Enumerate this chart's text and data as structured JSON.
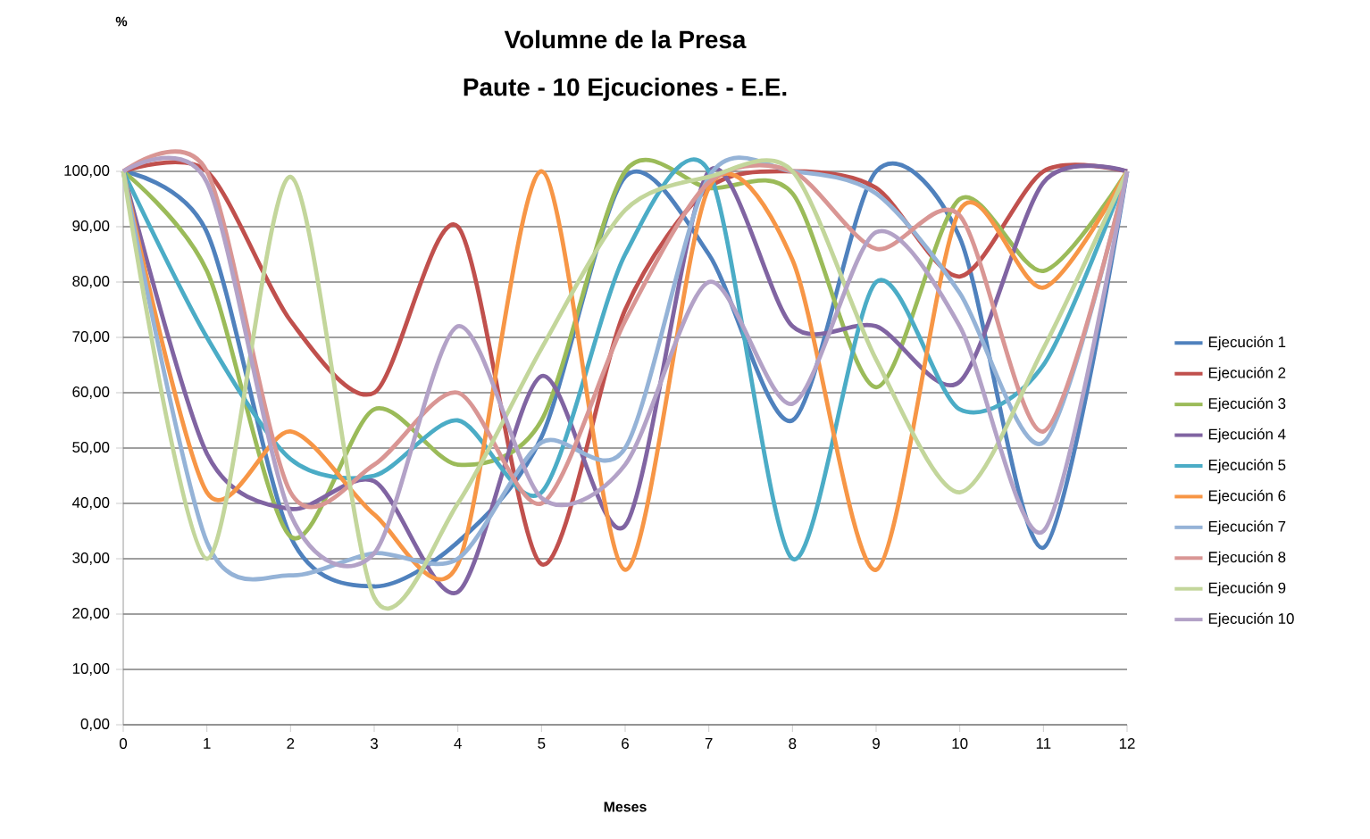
{
  "chart_data": {
    "type": "line",
    "title": "Volumne de la Presa",
    "subtitle": "Paute - 10 Ejcuciones - E.E.",
    "xlabel": "Meses",
    "annotations": [
      "%"
    ],
    "x": [
      0,
      1,
      2,
      3,
      4,
      5,
      6,
      7,
      8,
      9,
      10,
      11,
      12
    ],
    "xlim": [
      0,
      12
    ],
    "xticks": [
      0,
      1,
      2,
      3,
      4,
      5,
      6,
      7,
      8,
      9,
      10,
      11,
      12
    ],
    "ylim": [
      0,
      100
    ],
    "yticks": [
      {
        "value": 0,
        "label": "0,00"
      },
      {
        "value": 10,
        "label": "10,00"
      },
      {
        "value": 20,
        "label": "20,00"
      },
      {
        "value": 30,
        "label": "30,00"
      },
      {
        "value": 40,
        "label": "40,00"
      },
      {
        "value": 50,
        "label": "50,00"
      },
      {
        "value": 60,
        "label": "60,00"
      },
      {
        "value": 70,
        "label": "70,00"
      },
      {
        "value": 80,
        "label": "80,00"
      },
      {
        "value": 90,
        "label": "90,00"
      },
      {
        "value": 100,
        "label": "100,00"
      }
    ],
    "grid": "y",
    "legend": "right",
    "series": [
      {
        "name": "Ejecución 1",
        "color": "#4f81bd",
        "values": [
          100,
          89,
          34,
          25,
          33,
          52,
          99,
          85,
          55,
          100,
          88,
          32,
          100
        ]
      },
      {
        "name": "Ejecución 2",
        "color": "#c0504d",
        "values": [
          100,
          100,
          73,
          60,
          90,
          29,
          75,
          97,
          100,
          97,
          81,
          100,
          100
        ]
      },
      {
        "name": "Ejecución 3",
        "color": "#9bbb59",
        "values": [
          100,
          82,
          34,
          57,
          47,
          55,
          100,
          97,
          96,
          61,
          95,
          82,
          100
        ]
      },
      {
        "name": "Ejecución 4",
        "color": "#8064a2",
        "values": [
          100,
          49,
          39,
          44,
          24,
          63,
          36,
          100,
          72,
          72,
          62,
          98,
          100
        ]
      },
      {
        "name": "Ejecución 5",
        "color": "#4bacc6",
        "values": [
          100,
          70,
          48,
          45,
          55,
          42,
          85,
          100,
          30,
          80,
          57,
          65,
          100
        ]
      },
      {
        "name": "Ejecución 6",
        "color": "#f79646",
        "values": [
          100,
          42,
          53,
          38,
          29,
          100,
          28,
          97,
          84,
          28,
          93,
          79,
          100
        ]
      },
      {
        "name": "Ejecución 7",
        "color": "#95b3d7",
        "values": [
          100,
          33,
          27,
          31,
          30,
          51,
          50,
          99,
          100,
          96,
          78,
          51,
          100
        ]
      },
      {
        "name": "Ejecución 8",
        "color": "#d99694",
        "values": [
          100,
          100,
          42,
          47,
          60,
          40,
          73,
          98,
          100,
          86,
          92,
          53,
          100
        ]
      },
      {
        "name": "Ejecución 9",
        "color": "#c3d69b",
        "values": [
          100,
          30,
          99,
          23,
          40,
          68,
          93,
          99,
          100,
          66,
          42,
          68,
          100
        ]
      },
      {
        "name": "Ejecución 10",
        "color": "#b3a2c7",
        "values": [
          100,
          98,
          38,
          31,
          72,
          41,
          47,
          80,
          58,
          89,
          72,
          35,
          100
        ]
      }
    ]
  }
}
